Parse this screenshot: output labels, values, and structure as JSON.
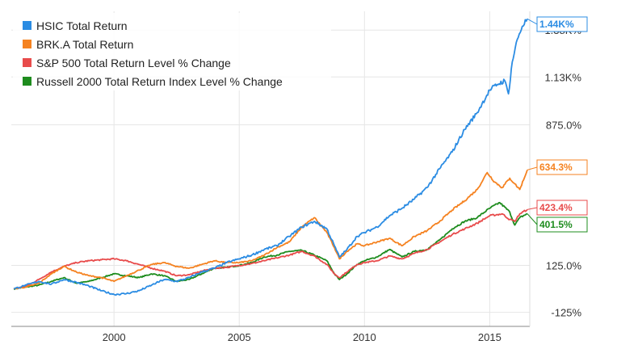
{
  "chart_data": {
    "type": "line",
    "title": "",
    "xlabel": "",
    "ylabel": "",
    "x_ticks": [
      "2000",
      "2005",
      "2010",
      "2015"
    ],
    "x_tick_values": [
      2000,
      2005,
      2010,
      2015
    ],
    "y_ticks": [
      "-125%",
      "125.0%",
      "875.0%",
      "1.13K%",
      "1.38K%"
    ],
    "y_tick_values": [
      -125,
      125,
      875,
      1130,
      1380
    ],
    "xlim": [
      1995.9,
      2016.6
    ],
    "ylim": [
      -200,
      1480
    ],
    "grid": true,
    "legend_position": "top-left",
    "series": [
      {
        "name": "HSIC Total Return",
        "color": "#2b8ce3",
        "end_label": "1.44K%",
        "points": [
          [
            1996.0,
            0
          ],
          [
            1996.5,
            20
          ],
          [
            1997.0,
            40
          ],
          [
            1997.5,
            25
          ],
          [
            1998.0,
            50
          ],
          [
            1998.5,
            35
          ],
          [
            1999.0,
            15
          ],
          [
            1999.5,
            -10
          ],
          [
            2000.0,
            -30
          ],
          [
            2000.5,
            -25
          ],
          [
            2001.0,
            -10
          ],
          [
            2001.5,
            20
          ],
          [
            2002.0,
            50
          ],
          [
            2002.5,
            40
          ],
          [
            2003.0,
            60
          ],
          [
            2003.5,
            90
          ],
          [
            2004.0,
            110
          ],
          [
            2004.5,
            140
          ],
          [
            2005.0,
            160
          ],
          [
            2005.5,
            180
          ],
          [
            2006.0,
            210
          ],
          [
            2006.5,
            230
          ],
          [
            2007.0,
            280
          ],
          [
            2007.5,
            330
          ],
          [
            2008.0,
            360
          ],
          [
            2008.5,
            320
          ],
          [
            2008.8,
            230
          ],
          [
            2009.0,
            170
          ],
          [
            2009.3,
            210
          ],
          [
            2009.7,
            280
          ],
          [
            2010.0,
            300
          ],
          [
            2010.5,
            330
          ],
          [
            2011.0,
            390
          ],
          [
            2011.5,
            430
          ],
          [
            2012.0,
            480
          ],
          [
            2012.5,
            540
          ],
          [
            2013.0,
            640
          ],
          [
            2013.5,
            730
          ],
          [
            2014.0,
            850
          ],
          [
            2014.5,
            940
          ],
          [
            2015.0,
            1060
          ],
          [
            2015.3,
            1090
          ],
          [
            2015.6,
            1110
          ],
          [
            2015.75,
            1040
          ],
          [
            2015.9,
            1210
          ],
          [
            2016.1,
            1330
          ],
          [
            2016.3,
            1400
          ],
          [
            2016.5,
            1440
          ]
        ]
      },
      {
        "name": "BRK.A Total Return",
        "color": "#f58220",
        "end_label": "634.3%",
        "points": [
          [
            1996.0,
            0
          ],
          [
            1996.5,
            10
          ],
          [
            1997.0,
            30
          ],
          [
            1997.5,
            80
          ],
          [
            1998.0,
            120
          ],
          [
            1998.5,
            90
          ],
          [
            1999.0,
            70
          ],
          [
            1999.5,
            60
          ],
          [
            2000.0,
            40
          ],
          [
            2000.5,
            70
          ],
          [
            2001.0,
            100
          ],
          [
            2001.5,
            130
          ],
          [
            2002.0,
            140
          ],
          [
            2002.5,
            120
          ],
          [
            2003.0,
            110
          ],
          [
            2003.5,
            130
          ],
          [
            2004.0,
            150
          ],
          [
            2004.5,
            140
          ],
          [
            2005.0,
            140
          ],
          [
            2005.5,
            150
          ],
          [
            2006.0,
            180
          ],
          [
            2006.5,
            220
          ],
          [
            2007.0,
            250
          ],
          [
            2007.5,
            330
          ],
          [
            2008.0,
            380
          ],
          [
            2008.5,
            300
          ],
          [
            2008.8,
            220
          ],
          [
            2009.0,
            160
          ],
          [
            2009.3,
            200
          ],
          [
            2009.7,
            240
          ],
          [
            2010.0,
            230
          ],
          [
            2010.5,
            250
          ],
          [
            2011.0,
            270
          ],
          [
            2011.5,
            230
          ],
          [
            2012.0,
            280
          ],
          [
            2012.5,
            310
          ],
          [
            2013.0,
            360
          ],
          [
            2013.5,
            420
          ],
          [
            2014.0,
            470
          ],
          [
            2014.5,
            530
          ],
          [
            2014.9,
            620
          ],
          [
            2015.2,
            570
          ],
          [
            2015.5,
            540
          ],
          [
            2015.8,
            590
          ],
          [
            2016.0,
            560
          ],
          [
            2016.2,
            530
          ],
          [
            2016.5,
            634
          ]
        ]
      },
      {
        "name": "S&P 500 Total Return Level % Change",
        "color": "#e84b4b",
        "end_label": "423.4%",
        "points": [
          [
            1996.0,
            0
          ],
          [
            1996.5,
            15
          ],
          [
            1997.0,
            50
          ],
          [
            1997.5,
            90
          ],
          [
            1998.0,
            120
          ],
          [
            1998.5,
            140
          ],
          [
            1999.0,
            150
          ],
          [
            1999.5,
            155
          ],
          [
            2000.0,
            160
          ],
          [
            2000.5,
            150
          ],
          [
            2001.0,
            130
          ],
          [
            2001.5,
            110
          ],
          [
            2002.0,
            95
          ],
          [
            2002.5,
            70
          ],
          [
            2003.0,
            75
          ],
          [
            2003.5,
            95
          ],
          [
            2004.0,
            110
          ],
          [
            2004.5,
            115
          ],
          [
            2005.0,
            125
          ],
          [
            2005.5,
            135
          ],
          [
            2006.0,
            150
          ],
          [
            2006.5,
            165
          ],
          [
            2007.0,
            180
          ],
          [
            2007.5,
            200
          ],
          [
            2008.0,
            175
          ],
          [
            2008.5,
            130
          ],
          [
            2008.8,
            80
          ],
          [
            2009.0,
            60
          ],
          [
            2009.3,
            90
          ],
          [
            2009.7,
            130
          ],
          [
            2010.0,
            140
          ],
          [
            2010.5,
            150
          ],
          [
            2011.0,
            175
          ],
          [
            2011.5,
            160
          ],
          [
            2012.0,
            190
          ],
          [
            2012.5,
            210
          ],
          [
            2013.0,
            250
          ],
          [
            2013.5,
            290
          ],
          [
            2014.0,
            320
          ],
          [
            2014.5,
            350
          ],
          [
            2015.0,
            390
          ],
          [
            2015.5,
            400
          ],
          [
            2015.8,
            370
          ],
          [
            2016.0,
            360
          ],
          [
            2016.2,
            400
          ],
          [
            2016.5,
            423
          ]
        ]
      },
      {
        "name": "Russell 2000 Total Return Index Level % Change",
        "color": "#1e8c1e",
        "end_label": "401.5%",
        "points": [
          [
            1996.0,
            0
          ],
          [
            1996.5,
            10
          ],
          [
            1997.0,
            20
          ],
          [
            1997.5,
            40
          ],
          [
            1998.0,
            60
          ],
          [
            1998.5,
            30
          ],
          [
            1999.0,
            40
          ],
          [
            1999.5,
            60
          ],
          [
            2000.0,
            80
          ],
          [
            2000.5,
            70
          ],
          [
            2001.0,
            60
          ],
          [
            2001.5,
            80
          ],
          [
            2002.0,
            70
          ],
          [
            2002.5,
            40
          ],
          [
            2003.0,
            50
          ],
          [
            2003.5,
            80
          ],
          [
            2004.0,
            110
          ],
          [
            2004.5,
            115
          ],
          [
            2005.0,
            125
          ],
          [
            2005.5,
            140
          ],
          [
            2006.0,
            170
          ],
          [
            2006.5,
            180
          ],
          [
            2007.0,
            200
          ],
          [
            2007.5,
            205
          ],
          [
            2008.0,
            180
          ],
          [
            2008.5,
            150
          ],
          [
            2008.8,
            80
          ],
          [
            2009.0,
            50
          ],
          [
            2009.3,
            80
          ],
          [
            2009.7,
            130
          ],
          [
            2010.0,
            150
          ],
          [
            2010.5,
            170
          ],
          [
            2011.0,
            210
          ],
          [
            2011.5,
            170
          ],
          [
            2012.0,
            200
          ],
          [
            2012.5,
            210
          ],
          [
            2013.0,
            260
          ],
          [
            2013.5,
            320
          ],
          [
            2014.0,
            360
          ],
          [
            2014.5,
            380
          ],
          [
            2015.0,
            430
          ],
          [
            2015.4,
            460
          ],
          [
            2015.8,
            410
          ],
          [
            2016.0,
            340
          ],
          [
            2016.2,
            380
          ],
          [
            2016.5,
            401
          ]
        ]
      }
    ]
  }
}
